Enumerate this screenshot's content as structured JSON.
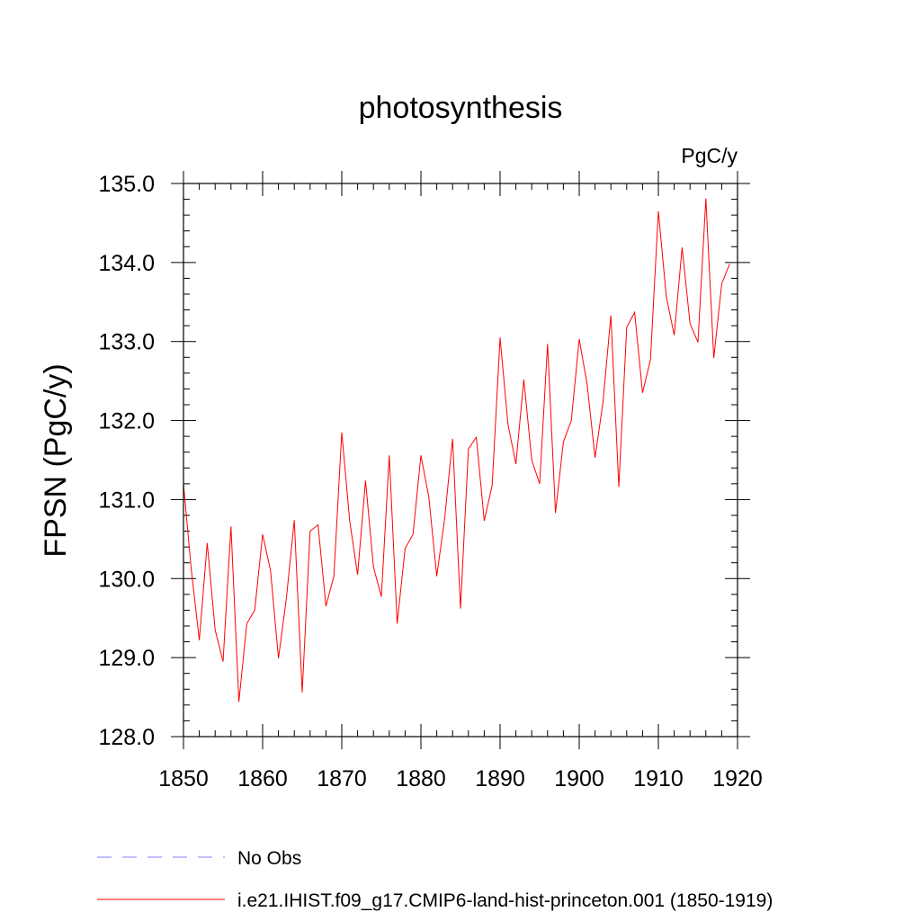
{
  "chart_data": {
    "type": "line",
    "title": "photosynthesis",
    "units_label": "PgC/y",
    "xlabel": "",
    "ylabel": "FPSN  (PgC/y)",
    "xlim": [
      1850,
      1920
    ],
    "ylim": [
      128.0,
      135.0
    ],
    "x_ticks": [
      1850,
      1860,
      1870,
      1880,
      1890,
      1900,
      1910,
      1920
    ],
    "y_ticks": [
      "128.0",
      "129.0",
      "130.0",
      "131.0",
      "132.0",
      "133.0",
      "134.0",
      "135.0"
    ],
    "grid": false,
    "legend_position": "bottom-left",
    "series": [
      {
        "name": "No Obs",
        "color": "#8080ff",
        "style": "dashed",
        "x": [],
        "values": []
      },
      {
        "name": "i.e21.IHIST.f09_g17.CMIP6-land-hist-princeton.001 (1850-1919)",
        "color": "#ff0000",
        "style": "solid",
        "x": [
          1850,
          1851,
          1852,
          1853,
          1854,
          1855,
          1856,
          1857,
          1858,
          1859,
          1860,
          1861,
          1862,
          1863,
          1864,
          1865,
          1866,
          1867,
          1868,
          1869,
          1870,
          1871,
          1872,
          1873,
          1874,
          1875,
          1876,
          1877,
          1878,
          1879,
          1880,
          1881,
          1882,
          1883,
          1884,
          1885,
          1886,
          1887,
          1888,
          1889,
          1890,
          1891,
          1892,
          1893,
          1894,
          1895,
          1896,
          1897,
          1898,
          1899,
          1900,
          1901,
          1902,
          1903,
          1904,
          1905,
          1906,
          1907,
          1908,
          1909,
          1910,
          1911,
          1912,
          1913,
          1914,
          1915,
          1916,
          1917,
          1918,
          1919
        ],
        "values": [
          131.2,
          130.1,
          129.22,
          130.45,
          129.35,
          128.95,
          130.66,
          128.44,
          129.43,
          129.6,
          130.56,
          130.1,
          128.99,
          129.75,
          130.74,
          128.56,
          130.6,
          130.68,
          129.65,
          130.03,
          131.85,
          130.73,
          130.05,
          131.24,
          130.15,
          129.77,
          131.56,
          129.43,
          130.38,
          130.56,
          131.56,
          131.03,
          130.03,
          130.76,
          131.77,
          129.62,
          131.64,
          131.79,
          130.73,
          131.18,
          133.05,
          131.95,
          131.45,
          132.52,
          131.5,
          131.2,
          132.97,
          130.83,
          131.73,
          132.0,
          133.03,
          132.46,
          131.53,
          132.23,
          133.33,
          131.16,
          133.18,
          133.37,
          132.35,
          132.77,
          134.65,
          133.57,
          133.08,
          134.19,
          133.23,
          132.99,
          134.81,
          132.79,
          133.73,
          133.98
        ]
      }
    ]
  }
}
